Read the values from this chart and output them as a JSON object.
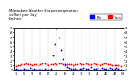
{
  "title": "Milwaukee Weather Evapotranspiration\nvs Rain per Day\n(Inches)",
  "legend_labels": [
    "ETo",
    "Rain"
  ],
  "legend_colors": [
    "blue",
    "red"
  ],
  "background_color": "#ffffff",
  "plot_bg": "#ffffff",
  "grid_color": "#aaaaaa",
  "red_x": [
    1,
    2,
    3,
    4,
    5,
    6,
    7,
    8,
    9,
    10,
    11,
    12,
    13,
    14,
    15,
    16,
    17,
    18,
    19,
    20,
    21,
    22,
    23,
    24,
    25,
    26,
    27,
    28,
    29,
    30,
    31,
    32,
    33,
    34,
    35,
    36,
    37,
    38,
    39,
    40,
    41,
    42,
    43,
    44,
    45,
    46,
    47,
    48,
    49,
    50,
    51,
    52
  ],
  "red_y": [
    0.08,
    0.09,
    0.1,
    0.11,
    0.12,
    0.13,
    0.12,
    0.11,
    0.1,
    0.11,
    0.12,
    0.1,
    0.11,
    0.13,
    0.14,
    0.12,
    0.1,
    0.11,
    0.12,
    0.13,
    0.11,
    0.13,
    0.14,
    0.12,
    0.1,
    0.11,
    0.12,
    0.11,
    0.1,
    0.12,
    0.11,
    0.13,
    0.12,
    0.11,
    0.13,
    0.12,
    0.1,
    0.11,
    0.13,
    0.12,
    0.11,
    0.1,
    0.12,
    0.13,
    0.14,
    0.12,
    0.11,
    0.1,
    0.09,
    0.1,
    0.09,
    0.08
  ],
  "blue_x": [
    1,
    2,
    3,
    4,
    5,
    6,
    7,
    8,
    9,
    10,
    11,
    12,
    13,
    14,
    15,
    16,
    17,
    18,
    19,
    20,
    21,
    22,
    23,
    24,
    25,
    26,
    27,
    28,
    29,
    30,
    31,
    32,
    33,
    34,
    35,
    36,
    37,
    38,
    39,
    40,
    41,
    42,
    43,
    44,
    45,
    46,
    47,
    48,
    49,
    50,
    51,
    52
  ],
  "blue_y": [
    0.01,
    0.0,
    0.0,
    0.0,
    0.02,
    0.0,
    0.0,
    0.04,
    0.0,
    0.01,
    0.0,
    0.01,
    0.0,
    0.0,
    0.02,
    0.0,
    0.0,
    0.01,
    0.3,
    0.55,
    0.88,
    0.68,
    0.42,
    0.22,
    0.12,
    0.06,
    0.04,
    0.02,
    0.01,
    0.02,
    0.0,
    0.01,
    0.02,
    0.04,
    0.02,
    0.01,
    0.0,
    0.05,
    0.02,
    0.01,
    0.04,
    0.0,
    0.03,
    0.02,
    0.01,
    0.0,
    0.03,
    0.02,
    0.01,
    0.04,
    0.01,
    0.0
  ],
  "ylim": [
    0,
    0.9
  ],
  "xlim": [
    0.5,
    53.5
  ],
  "xtick_positions": [
    1,
    5,
    9,
    13,
    17,
    21,
    25,
    29,
    33,
    37,
    41,
    45,
    49,
    53
  ],
  "xtick_labels": [
    "1",
    "5",
    "9",
    "13",
    "17",
    "21",
    "25",
    "29",
    "33",
    "37",
    "41",
    "45",
    "49",
    "53"
  ],
  "ytick_left": [
    0.0,
    0.1,
    0.2,
    0.3,
    0.4,
    0.5,
    0.6,
    0.7,
    0.8,
    0.9
  ],
  "ytick_labels_left": [
    "0",
    ".1",
    ".2",
    ".3",
    ".4",
    ".5",
    ".6",
    ".7",
    ".8",
    ".9"
  ],
  "ytick_right": [
    0.0,
    0.1,
    0.2,
    0.3,
    0.4,
    0.5,
    0.6,
    0.7,
    0.8,
    0.9
  ],
  "ytick_labels_right": [
    "0",
    ".1",
    ".2",
    ".3",
    ".4",
    ".5",
    ".6",
    ".7",
    ".8",
    ".9"
  ],
  "vgrid_positions": [
    5,
    9,
    13,
    17,
    21,
    25,
    29,
    33,
    37,
    41,
    45,
    49
  ],
  "marker_size": 1.8,
  "title_fontsize": 2.8,
  "tick_fontsize": 2.5,
  "legend_fontsize": 2.5
}
